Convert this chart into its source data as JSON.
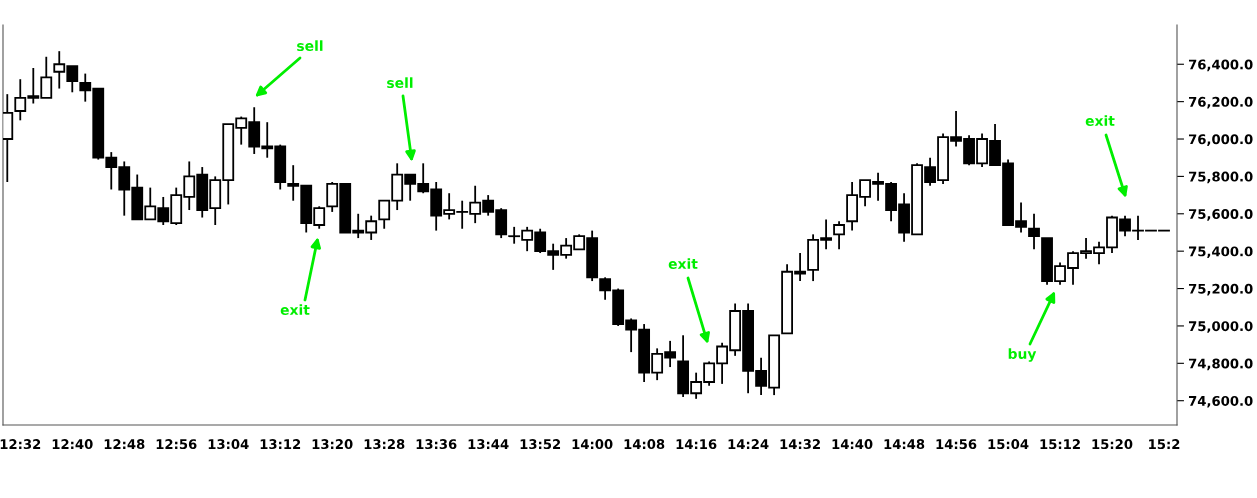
{
  "chart_data": {
    "type": "candlestick",
    "color": "#000000",
    "x": [
      12.5,
      12.5333,
      12.5667,
      12.6,
      12.6333,
      12.6667,
      12.7,
      12.7333,
      12.7667,
      12.8,
      12.8333,
      12.8667,
      12.9,
      12.9333,
      12.9667,
      13.0,
      13.0333,
      13.0667,
      13.1,
      13.1333,
      13.1667,
      13.2,
      13.2333,
      13.2667,
      13.3,
      13.3333,
      13.3667,
      13.4,
      13.4333,
      13.4667,
      13.5,
      13.5333,
      13.5667,
      13.6,
      13.6333,
      13.6667,
      13.7,
      13.7333,
      13.7667,
      13.8,
      13.8333,
      13.8667,
      13.9,
      13.9333,
      13.9667,
      14.0,
      14.0333,
      14.0667,
      14.1,
      14.1333,
      14.1667,
      14.2,
      14.2333,
      14.2667,
      14.3,
      14.3333,
      14.3667,
      14.4,
      14.4333,
      14.4667,
      14.5,
      14.5333,
      14.5667,
      14.6,
      14.6333,
      14.6667,
      14.7,
      14.7333,
      14.7667,
      14.8,
      14.8333,
      14.8667,
      14.9,
      14.9333,
      14.9667,
      15.0,
      15.0333,
      15.0667,
      15.1,
      15.1333,
      15.1667,
      15.2,
      15.2333,
      15.2667,
      15.3,
      15.3333,
      15.3667,
      15.4,
      15.4333,
      15.4667
    ],
    "ohlc": [
      [
        76000,
        76240,
        75770,
        76140
      ],
      [
        76150,
        76320,
        76100,
        76220
      ],
      [
        76220,
        76380,
        76190,
        76230
      ],
      [
        76220,
        76440,
        76220,
        76330
      ],
      [
        76360,
        76470,
        76270,
        76400
      ],
      [
        76390,
        76390,
        76250,
        76310
      ],
      [
        76300,
        76350,
        76200,
        76260
      ],
      [
        76270,
        76270,
        75890,
        75900
      ],
      [
        75900,
        75930,
        75730,
        75850
      ],
      [
        75850,
        75880,
        75590,
        75730
      ],
      [
        75740,
        75810,
        75570,
        75570
      ],
      [
        75570,
        75740,
        75570,
        75640
      ],
      [
        75630,
        75690,
        75540,
        75560
      ],
      [
        75550,
        75740,
        75540,
        75700
      ],
      [
        75690,
        75880,
        75620,
        75800
      ],
      [
        75810,
        75850,
        75580,
        75620
      ],
      [
        75630,
        75800,
        75540,
        75780
      ],
      [
        75780,
        76080,
        75650,
        76080
      ],
      [
        76060,
        76120,
        75970,
        76110
      ],
      [
        76090,
        76170,
        75920,
        75960
      ],
      [
        75950,
        76090,
        75900,
        75960
      ],
      [
        75960,
        75970,
        75730,
        75770
      ],
      [
        75760,
        75860,
        75670,
        75750
      ],
      [
        75750,
        75750,
        75500,
        75550
      ],
      [
        75540,
        75640,
        75520,
        75630
      ],
      [
        75640,
        75770,
        75610,
        75760
      ],
      [
        75760,
        75760,
        75500,
        75500
      ],
      [
        75510,
        75600,
        75470,
        75500
      ],
      [
        75500,
        75590,
        75460,
        75560
      ],
      [
        75570,
        75670,
        75520,
        75670
      ],
      [
        75670,
        75870,
        75620,
        75810
      ],
      [
        75810,
        75810,
        75670,
        75760
      ],
      [
        75760,
        75870,
        75710,
        75720
      ],
      [
        75730,
        75770,
        75510,
        75590
      ],
      [
        75600,
        75710,
        75570,
        75620
      ],
      [
        75610,
        75670,
        75520,
        75610
      ],
      [
        75600,
        75750,
        75550,
        75660
      ],
      [
        75670,
        75700,
        75590,
        75610
      ],
      [
        75620,
        75630,
        75470,
        75490
      ],
      [
        75480,
        75530,
        75440,
        75480
      ],
      [
        75460,
        75530,
        75400,
        75510
      ],
      [
        75500,
        75520,
        75390,
        75400
      ],
      [
        75400,
        75440,
        75300,
        75380
      ],
      [
        75380,
        75470,
        75360,
        75430
      ],
      [
        75410,
        75490,
        75410,
        75480
      ],
      [
        75470,
        75510,
        75240,
        75260
      ],
      [
        75250,
        75260,
        75140,
        75190
      ],
      [
        75190,
        75200,
        75000,
        75010
      ],
      [
        75030,
        75040,
        74860,
        74980
      ],
      [
        74980,
        75010,
        74700,
        74750
      ],
      [
        74750,
        74880,
        74710,
        74850
      ],
      [
        74860,
        74920,
        74780,
        74830
      ],
      [
        74810,
        74950,
        74620,
        74640
      ],
      [
        74640,
        74750,
        74610,
        74700
      ],
      [
        74700,
        74810,
        74680,
        74800
      ],
      [
        74800,
        74910,
        74690,
        74890
      ],
      [
        74870,
        75120,
        74840,
        75080
      ],
      [
        75080,
        75120,
        74640,
        74760
      ],
      [
        74760,
        74830,
        74630,
        74680
      ],
      [
        74670,
        74950,
        74630,
        74950
      ],
      [
        74960,
        75330,
        74960,
        75290
      ],
      [
        75280,
        75390,
        75240,
        75290
      ],
      [
        75300,
        75490,
        75240,
        75460
      ],
      [
        75460,
        75570,
        75410,
        75470
      ],
      [
        75490,
        75560,
        75410,
        75540
      ],
      [
        75560,
        75770,
        75510,
        75700
      ],
      [
        75690,
        75780,
        75640,
        75780
      ],
      [
        75770,
        75820,
        75670,
        75760
      ],
      [
        75760,
        75770,
        75560,
        75620
      ],
      [
        75650,
        75710,
        75450,
        75500
      ],
      [
        75490,
        75870,
        75490,
        75860
      ],
      [
        75850,
        75900,
        75750,
        75770
      ],
      [
        75780,
        76030,
        75760,
        76010
      ],
      [
        76010,
        76150,
        75960,
        75990
      ],
      [
        76000,
        76020,
        75860,
        75870
      ],
      [
        75870,
        76030,
        75850,
        76000
      ],
      [
        75990,
        76080,
        75860,
        75860
      ],
      [
        75870,
        75890,
        75540,
        75540
      ],
      [
        75560,
        75660,
        75500,
        75530
      ],
      [
        75520,
        75600,
        75410,
        75480
      ],
      [
        75470,
        75470,
        75220,
        75240
      ],
      [
        75240,
        75340,
        75220,
        75320
      ],
      [
        75310,
        75400,
        75220,
        75390
      ],
      [
        75390,
        75470,
        75360,
        75400
      ],
      [
        75390,
        75450,
        75330,
        75420
      ],
      [
        75420,
        75590,
        75390,
        75580
      ],
      [
        75570,
        75590,
        75480,
        75510
      ],
      [
        75510,
        75590,
        75460,
        75510
      ],
      [
        75510,
        75510,
        75510,
        75510
      ],
      [
        75510,
        75510,
        75510,
        75510
      ]
    ],
    "xlim": [
      12.489,
      15.5
    ],
    "xticks": [
      {
        "value": 12.5333,
        "label": "12:32"
      },
      {
        "value": 12.6667,
        "label": "12:40"
      },
      {
        "value": 12.8,
        "label": "12:48"
      },
      {
        "value": 12.9333,
        "label": "12:56"
      },
      {
        "value": 13.0667,
        "label": "13:04"
      },
      {
        "value": 13.2,
        "label": "13:12"
      },
      {
        "value": 13.3333,
        "label": "13:20"
      },
      {
        "value": 13.4667,
        "label": "13:28"
      },
      {
        "value": 13.6,
        "label": "13:36"
      },
      {
        "value": 13.7333,
        "label": "13:44"
      },
      {
        "value": 13.8667,
        "label": "13:52"
      },
      {
        "value": 14.0,
        "label": "14:00"
      },
      {
        "value": 14.1333,
        "label": "14:08"
      },
      {
        "value": 14.2667,
        "label": "14:16"
      },
      {
        "value": 14.4,
        "label": "14:24"
      },
      {
        "value": 14.5333,
        "label": "14:32"
      },
      {
        "value": 14.6667,
        "label": "14:40"
      },
      {
        "value": 14.8,
        "label": "14:48"
      },
      {
        "value": 14.9333,
        "label": "14:56"
      },
      {
        "value": 15.0667,
        "label": "15:04"
      },
      {
        "value": 15.2,
        "label": "15:12"
      },
      {
        "value": 15.3333,
        "label": "15:20"
      },
      {
        "value": 15.4667,
        "label": "15:2"
      }
    ],
    "ylim": [
      74470,
      76610
    ],
    "yticks": [
      {
        "value": 74600,
        "label": "74,600.0"
      },
      {
        "value": 74800,
        "label": "74,800.0"
      },
      {
        "value": 75000,
        "label": "75,000.0"
      },
      {
        "value": 75200,
        "label": "75,200.0"
      },
      {
        "value": 75400,
        "label": "75,400.0"
      },
      {
        "value": 75600,
        "label": "75,600.0"
      },
      {
        "value": 75800,
        "label": "75,800.0"
      },
      {
        "value": 76000,
        "label": "76,000.0"
      },
      {
        "value": 76200,
        "label": "76,200.0"
      },
      {
        "value": 76400,
        "label": "76,400.0"
      }
    ],
    "annotations": [
      "sell",
      "exit",
      "sell",
      "exit",
      "buy",
      "exit"
    ],
    "grid": false
  }
}
